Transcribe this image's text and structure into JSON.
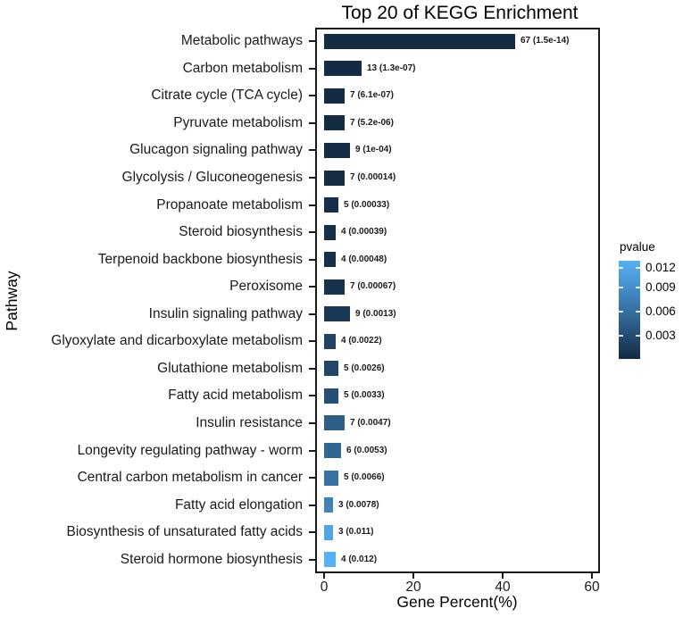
{
  "chart_data": {
    "type": "bar",
    "orientation": "horizontal",
    "title": "Top 20 of KEGG Enrichment",
    "xlabel": "Gene Percent(%)",
    "ylabel": "Pathway",
    "xlim": [
      0,
      62
    ],
    "x_tick_labels": [
      "0",
      "20",
      "40",
      "60"
    ],
    "x_tick_values": [
      0,
      20,
      40,
      60
    ],
    "grid": false,
    "legend": {
      "title": "pvalue",
      "position": "right",
      "tick_labels": [
        "0.012",
        "0.009",
        "0.006",
        "0.003"
      ],
      "gradient_top_color": "#56B1F7",
      "gradient_mid_color": "#366FA1",
      "gradient_bottom_color": "#132B43"
    },
    "rows": [
      {
        "pathway": "Metabolic pathways",
        "gene_count": 67,
        "gene_percent": 42.7,
        "pvalue": 1.5e-14,
        "bar_label": "67 (1.5e-14)",
        "color": "#132B43"
      },
      {
        "pathway": "Carbon metabolism",
        "gene_count": 13,
        "gene_percent": 8.3,
        "pvalue": 1.3e-07,
        "bar_label": "13 (1.3e-07)",
        "color": "#132B43"
      },
      {
        "pathway": "Citrate cycle (TCA cycle)",
        "gene_count": 7,
        "gene_percent": 4.5,
        "pvalue": 6.1e-07,
        "bar_label": "7 (6.1e-07)",
        "color": "#132B43"
      },
      {
        "pathway": "Pyruvate metabolism",
        "gene_count": 7,
        "gene_percent": 4.5,
        "pvalue": 5.2e-06,
        "bar_label": "7 (5.2e-06)",
        "color": "#132C44"
      },
      {
        "pathway": "Glucagon signaling pathway",
        "gene_count": 9,
        "gene_percent": 5.7,
        "pvalue": 0.0001,
        "bar_label": "9 (1e-04)",
        "color": "#142C45"
      },
      {
        "pathway": "Glycolysis / Gluconeogenesis",
        "gene_count": 7,
        "gene_percent": 4.5,
        "pvalue": 0.00014,
        "bar_label": "7 (0.00014)",
        "color": "#142D45"
      },
      {
        "pathway": "Propanoate metabolism",
        "gene_count": 5,
        "gene_percent": 3.2,
        "pvalue": 0.00033,
        "bar_label": "5 (0.00033)",
        "color": "#152F48"
      },
      {
        "pathway": "Steroid biosynthesis",
        "gene_count": 4,
        "gene_percent": 2.5,
        "pvalue": 0.00039,
        "bar_label": "4 (0.00039)",
        "color": "#162F49"
      },
      {
        "pathway": "Terpenoid backbone biosynthesis",
        "gene_count": 4,
        "gene_percent": 2.5,
        "pvalue": 0.00048,
        "bar_label": "4 (0.00048)",
        "color": "#16304A"
      },
      {
        "pathway": "Peroxisome",
        "gene_count": 7,
        "gene_percent": 4.5,
        "pvalue": 0.00067,
        "bar_label": "7 (0.00067)",
        "color": "#17324D"
      },
      {
        "pathway": "Insulin signaling pathway",
        "gene_count": 9,
        "gene_percent": 5.7,
        "pvalue": 0.0013,
        "bar_label": "9 (0.0013)",
        "color": "#1A3957"
      },
      {
        "pathway": "Glyoxylate and dicarboxylate metabolism",
        "gene_count": 4,
        "gene_percent": 2.5,
        "pvalue": 0.0022,
        "bar_label": "4 (0.0022)",
        "color": "#1F4364"
      },
      {
        "pathway": "Glutathione metabolism",
        "gene_count": 5,
        "gene_percent": 3.2,
        "pvalue": 0.0026,
        "bar_label": "5 (0.0026)",
        "color": "#224869"
      },
      {
        "pathway": "Fatty acid metabolism",
        "gene_count": 5,
        "gene_percent": 3.2,
        "pvalue": 0.0033,
        "bar_label": "5 (0.0033)",
        "color": "#254F74"
      },
      {
        "pathway": "Insulin resistance",
        "gene_count": 7,
        "gene_percent": 4.5,
        "pvalue": 0.0047,
        "bar_label": "7 (0.0047)",
        "color": "#2D5F89"
      },
      {
        "pathway": "Longevity regulating pathway - worm",
        "gene_count": 6,
        "gene_percent": 3.8,
        "pvalue": 0.0053,
        "bar_label": "6 (0.0053)",
        "color": "#306692"
      },
      {
        "pathway": "Central carbon metabolism in cancer",
        "gene_count": 5,
        "gene_percent": 3.2,
        "pvalue": 0.0066,
        "bar_label": "5 (0.0066)",
        "color": "#3774A6"
      },
      {
        "pathway": "Fatty acid elongation",
        "gene_count": 3,
        "gene_percent": 1.9,
        "pvalue": 0.0078,
        "bar_label": "3 (0.0078)",
        "color": "#3E82B8"
      },
      {
        "pathway": "Biosynthesis of unsaturated fatty acids",
        "gene_count": 3,
        "gene_percent": 1.9,
        "pvalue": 0.011,
        "bar_label": "3 (0.011)",
        "color": "#50A5E8"
      },
      {
        "pathway": "Steroid hormone biosynthesis",
        "gene_count": 4,
        "gene_percent": 2.5,
        "pvalue": 0.012,
        "bar_label": "4 (0.012)",
        "color": "#56B1F7"
      }
    ]
  }
}
